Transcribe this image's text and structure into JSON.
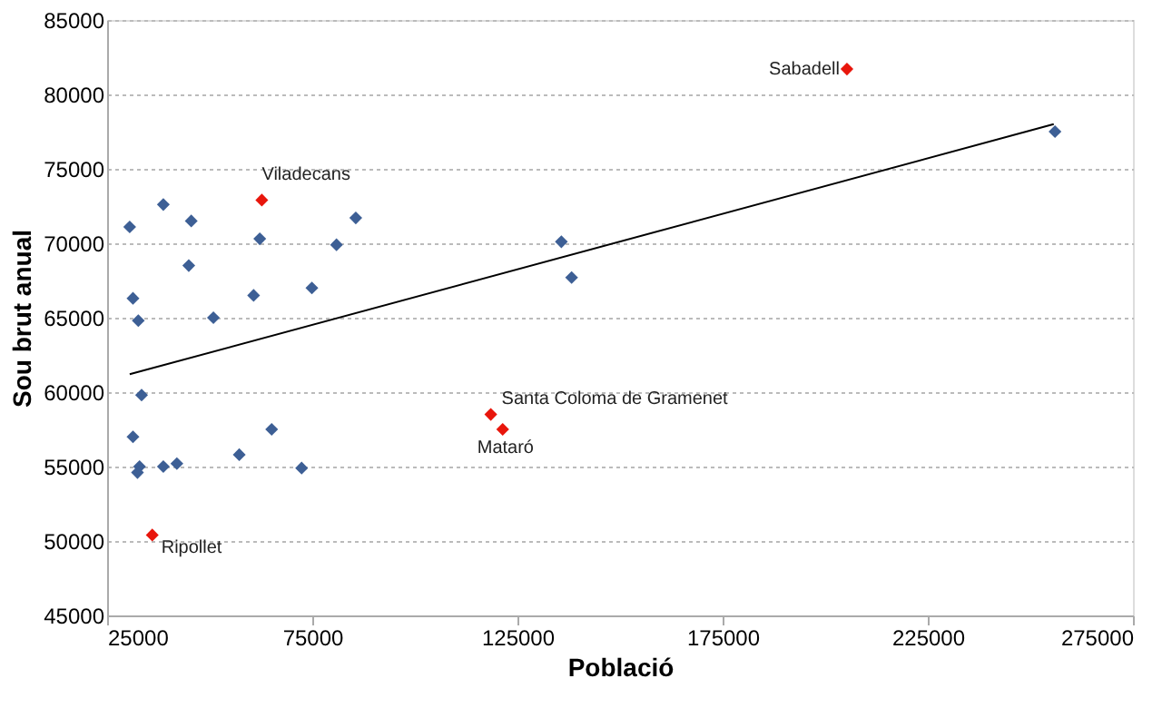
{
  "chart_data": {
    "type": "scatter",
    "xlabel": "Població",
    "ylabel": "Sou brut anual",
    "xlim": [
      25000,
      275000
    ],
    "xticks": [
      25000,
      75000,
      125000,
      175000,
      225000,
      275000
    ],
    "ylim": [
      45000,
      85000
    ],
    "yticks": [
      45000,
      50000,
      55000,
      60000,
      65000,
      70000,
      75000,
      80000,
      85000
    ],
    "grid": "y",
    "marker": "diamond",
    "series": [
      {
        "color": "#3d5f95",
        "x": [
          30500,
          38700,
          45500,
          44900,
          31300,
          32600,
          50900,
          62200,
          60700,
          74900,
          80900,
          85600,
          33400,
          31300,
          32900,
          32400,
          38700,
          42000,
          57200,
          65100,
          72400,
          135700,
          138200,
          256000
        ],
        "values": [
          71100,
          72600,
          71500,
          68500,
          66300,
          64800,
          65000,
          70300,
          66500,
          67000,
          69900,
          71700,
          59800,
          57000,
          55000,
          54600,
          55000,
          55200,
          55800,
          57500,
          54900,
          70100,
          67700,
          77500
        ]
      },
      {
        "color": "#e8160c",
        "x": [
          205300,
          62700,
          118500,
          121400,
          36000
        ],
        "values": [
          81700,
          72900,
          58500,
          57500,
          50400
        ]
      },
      {
        "type": "line",
        "color": "#000000",
        "marker": "none",
        "x": [
          30500,
          255700
        ],
        "values": [
          61200,
          78000
        ]
      }
    ],
    "annotations": [
      {
        "text": "Sabadell",
        "x": 205300,
        "y": 81700
      },
      {
        "text": "Viladecans",
        "x": 62700,
        "y": 72900
      },
      {
        "text": "Santa Coloma de Gramenet",
        "x": 118500,
        "y": 58500
      },
      {
        "text": "Mataró",
        "x": 121400,
        "y": 57500
      },
      {
        "text": "Ripollet",
        "x": 36000,
        "y": 50400
      }
    ]
  }
}
